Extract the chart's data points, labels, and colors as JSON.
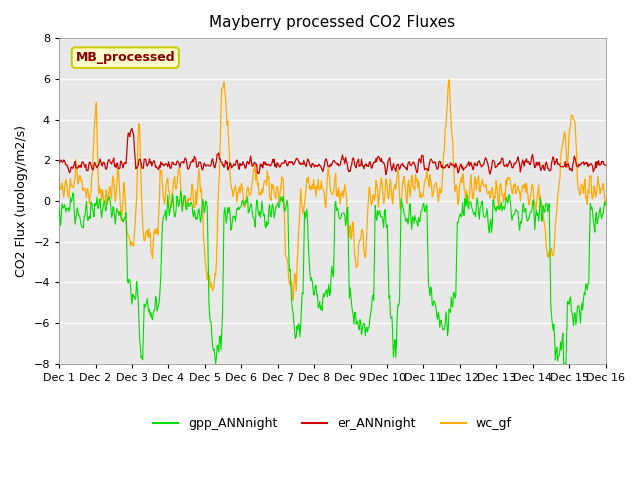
{
  "title": "Mayberry processed CO2 Fluxes",
  "ylabel": "CO2 Flux (urology/m2/s)",
  "ylim": [
    -8,
    8
  ],
  "yticks": [
    -8,
    -6,
    -4,
    -2,
    0,
    2,
    4,
    6,
    8
  ],
  "n_points": 720,
  "days": 15,
  "gpp_color": "#00dd00",
  "er_color": "#cc0000",
  "wc_color": "#ffaa00",
  "legend_label_gpp": "gpp_ANNnight",
  "legend_label_er": "er_ANNnight",
  "legend_label_wc": "wc_gf",
  "tag_text": "MB_processed",
  "tag_facecolor": "#ffffcc",
  "tag_edgecolor": "#cccc00",
  "tag_textcolor": "#880000",
  "bg_color": "#e8e8e8",
  "grid_color": "white",
  "tick_labels": [
    "Dec 1",
    "Dec 2",
    "Dec 3",
    "Dec 4",
    "Dec 5",
    "Dec 6",
    "Dec 7",
    "Dec 8",
    "Dec 9",
    "Dec 10",
    "Dec 11",
    "Dec 12",
    "Dec 13",
    "Dec 14",
    "Dec 15",
    "Dec 16"
  ],
  "seed": 42
}
